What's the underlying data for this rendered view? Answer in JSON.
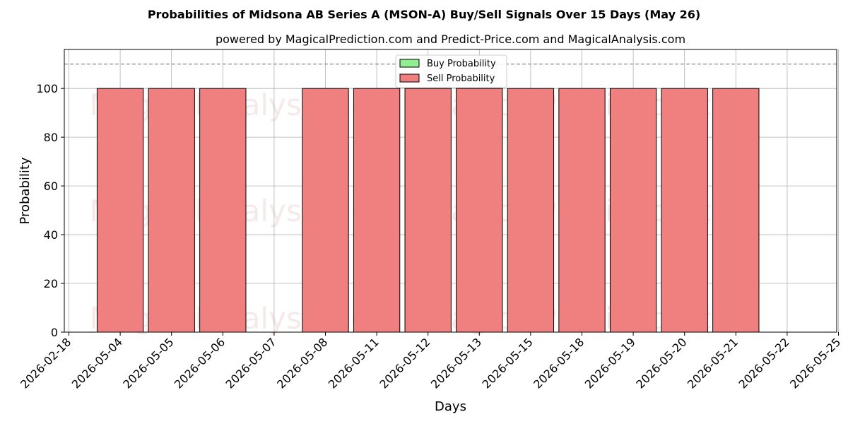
{
  "chart_data": {
    "type": "bar",
    "title": "Probabilities of Midsona AB Series A (MSON-A) Buy/Sell Signals Over 15 Days (May 26)",
    "subtitle": "powered by MagicalPrediction.com and Predict-Price.com and MagicalAnalysis.com",
    "xlabel": "Days",
    "ylabel": "Probability",
    "ylim": [
      0,
      116
    ],
    "yticks": [
      0,
      20,
      40,
      60,
      80,
      100
    ],
    "reference_line": 110,
    "grid": true,
    "legend_position": "top-center",
    "categories": [
      "2026-02-18",
      "2026-05-04",
      "2026-05-05",
      "2026-05-06",
      "2026-05-07",
      "2026-05-08",
      "2026-05-11",
      "2026-05-12",
      "2026-05-13",
      "2026-05-15",
      "2026-05-18",
      "2026-05-19",
      "2026-05-20",
      "2026-05-21",
      "2026-05-22",
      "2026-05-25"
    ],
    "series": [
      {
        "name": "Buy Probability",
        "color": "#90ee90",
        "values": [
          0,
          0,
          0,
          0,
          0,
          0,
          0,
          0,
          0,
          0,
          0,
          0,
          0,
          0,
          0,
          0
        ]
      },
      {
        "name": "Sell Probability",
        "color": "#f08080",
        "values": [
          0,
          100,
          100,
          100,
          0,
          100,
          100,
          100,
          100,
          100,
          100,
          100,
          100,
          100,
          0,
          0
        ]
      }
    ]
  },
  "watermarks": [
    "MagicalAnalysis.com",
    "MagicalPrediction.com"
  ]
}
